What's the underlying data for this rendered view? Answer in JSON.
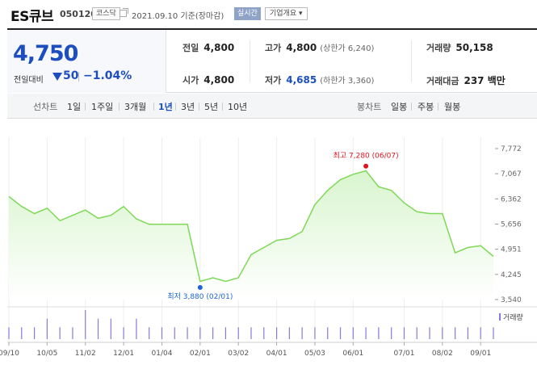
{
  "header": {
    "stock_name": "ES큐브",
    "stock_code": "050120",
    "market_badge": "코스닥",
    "external_link_icon": "external-link-icon",
    "date_text": "2021.09.10 기준(장마감)",
    "realtime_button": "실시간",
    "company_button": "기업개요 ▾"
  },
  "quote": {
    "price": "4,750",
    "change_label": "전일대비",
    "change_direction": "down",
    "change_value": "50",
    "change_pct": "−1.04%",
    "prev_close_label": "전일",
    "prev_close": "4,800",
    "open_label": "시가",
    "open": "4,800",
    "high_label": "고가",
    "high": "4,800",
    "high_sub": "(상한가 6,240)",
    "low_label": "저가",
    "low": "4,685",
    "low_sub": "(하한가 3,360)",
    "volume_label": "거래량",
    "volume": "50,158",
    "value_label": "거래대금",
    "value": "237 백만"
  },
  "tabs": {
    "line_label": "선차트",
    "line_periods": [
      "1일",
      "1주일",
      "3개월",
      "1년",
      "3년",
      "5년",
      "10년"
    ],
    "active_period": "1년",
    "candle_label": "봉차트",
    "candle_periods": [
      "일봉",
      "주봉",
      "월봉"
    ]
  },
  "colors": {
    "line": "#7ed957",
    "fill_top": "#d9f5cf",
    "fill_bottom": "#ffffff",
    "price_blue": "#1d4ebf",
    "high_red": "#e0141e",
    "low_blue": "#1f63d6",
    "volume_bar": "#8a7ad8"
  },
  "chart_data": {
    "type": "area",
    "x": [
      "09/10",
      "09/20",
      "09/30",
      "10/05",
      "10/15",
      "10/25",
      "11/02",
      "11/12",
      "11/22",
      "12/01",
      "12/11",
      "12/21",
      "01/04",
      "01/14",
      "01/24",
      "02/01",
      "02/10",
      "02/20",
      "03/02",
      "03/12",
      "03/22",
      "04/01",
      "04/11",
      "04/21",
      "05/03",
      "05/13",
      "05/23",
      "06/01",
      "06/07",
      "06/17",
      "06/27",
      "07/01",
      "07/11",
      "07/21",
      "08/02",
      "08/12",
      "08/22",
      "09/01",
      "09/10"
    ],
    "values": [
      6430,
      6150,
      5950,
      6100,
      5750,
      5900,
      6050,
      5820,
      5900,
      6150,
      5800,
      5650,
      5650,
      5650,
      5650,
      4050,
      4150,
      4050,
      4150,
      4800,
      5000,
      5200,
      5250,
      5450,
      6200,
      6600,
      6900,
      7050,
      7150,
      6700,
      6600,
      6250,
      6000,
      5950,
      5950,
      4850,
      5000,
      5050,
      4750
    ],
    "ylim": [
      3540,
      7772
    ],
    "yticks": [
      "7,772",
      "7,067",
      "6,362",
      "5,656",
      "4,951",
      "4,245",
      "3,540"
    ],
    "xticks": [
      "09/10",
      "10/05",
      "11/02",
      "12/01",
      "01/04",
      "02/01",
      "03/02",
      "04/01",
      "05/03",
      "06/01",
      "07/01",
      "08/02",
      "09/01"
    ],
    "xtick_index": [
      0,
      3,
      6,
      9,
      12,
      15,
      18,
      21,
      24,
      27,
      31,
      34,
      37
    ],
    "high": {
      "label": "최고 7,280 (06/07)",
      "value": 7280,
      "index": 28
    },
    "low": {
      "label": "최저 3,880 (02/01)",
      "value": 3880,
      "index": 15
    },
    "volume_label": "거래량",
    "volume": [
      1,
      1,
      1,
      2,
      1,
      1,
      3,
      2,
      2,
      1,
      2,
      1,
      1,
      1,
      1,
      1,
      1,
      1,
      1,
      1,
      1,
      1,
      1,
      1,
      1,
      1,
      1,
      1,
      1,
      1,
      1,
      1,
      1,
      1,
      1,
      1,
      1,
      1,
      1
    ],
    "grid": "vertical"
  }
}
